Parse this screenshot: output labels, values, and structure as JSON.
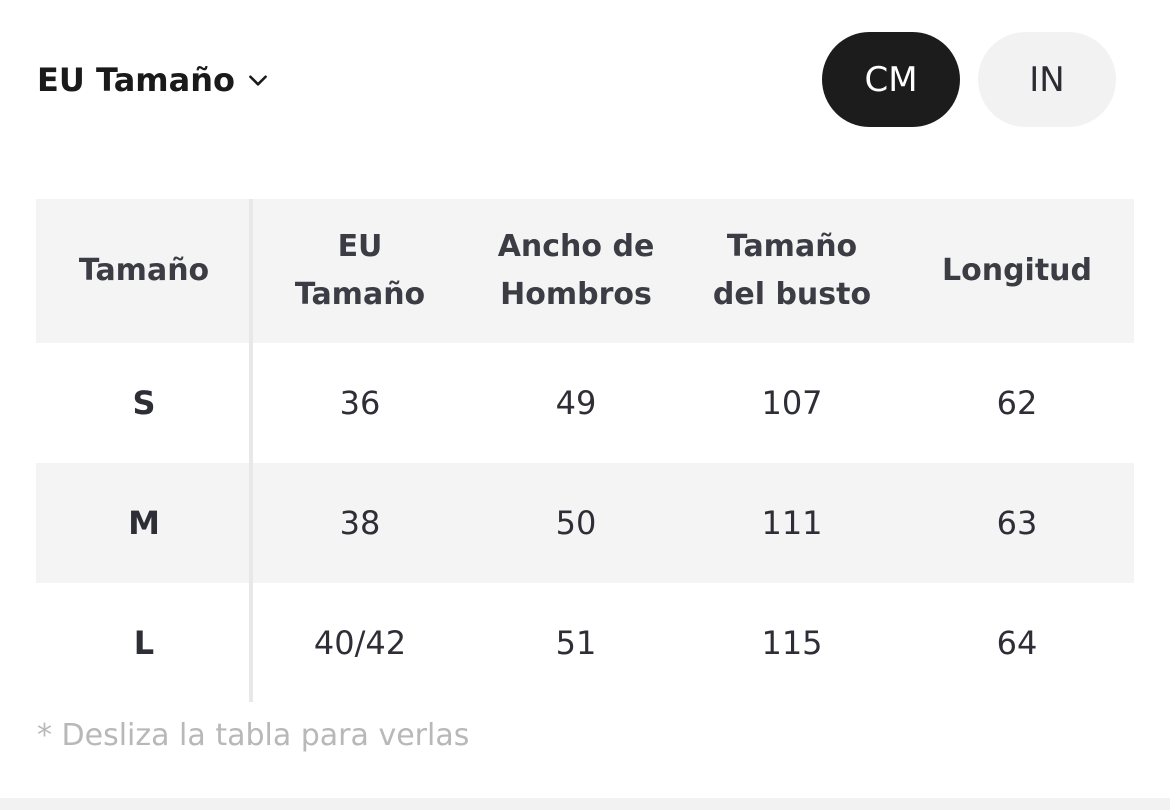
{
  "header": {
    "size_system_label": "EU Tamaño",
    "units": [
      {
        "label": "CM",
        "active": true
      },
      {
        "label": "IN",
        "active": false
      }
    ]
  },
  "table": {
    "columns": [
      "Tamaño",
      "EU Tamaño",
      "Ancho de Hombros",
      "Tamaño del busto",
      "Longitud"
    ],
    "column_lines": [
      [
        "Tamaño"
      ],
      [
        "EU",
        "Tamaño"
      ],
      [
        "Ancho de",
        "Hombros"
      ],
      [
        "Tamaño",
        "del busto"
      ],
      [
        "Longitud"
      ]
    ],
    "rows": [
      [
        "S",
        "36",
        "49",
        "107",
        "62"
      ],
      [
        "M",
        "38",
        "50",
        "111",
        "63"
      ],
      [
        "L",
        "40/42",
        "51",
        "115",
        "64"
      ]
    ]
  },
  "hint": "* Desliza la tabla para verlas",
  "colors": {
    "active_unit_bg": "#1c1c1c",
    "inactive_unit_bg": "#f2f2f2",
    "header_row_bg": "#f4f4f4",
    "hint_text": "#b8b8b8"
  },
  "icons": {
    "size_select": "chevron-down-icon"
  }
}
